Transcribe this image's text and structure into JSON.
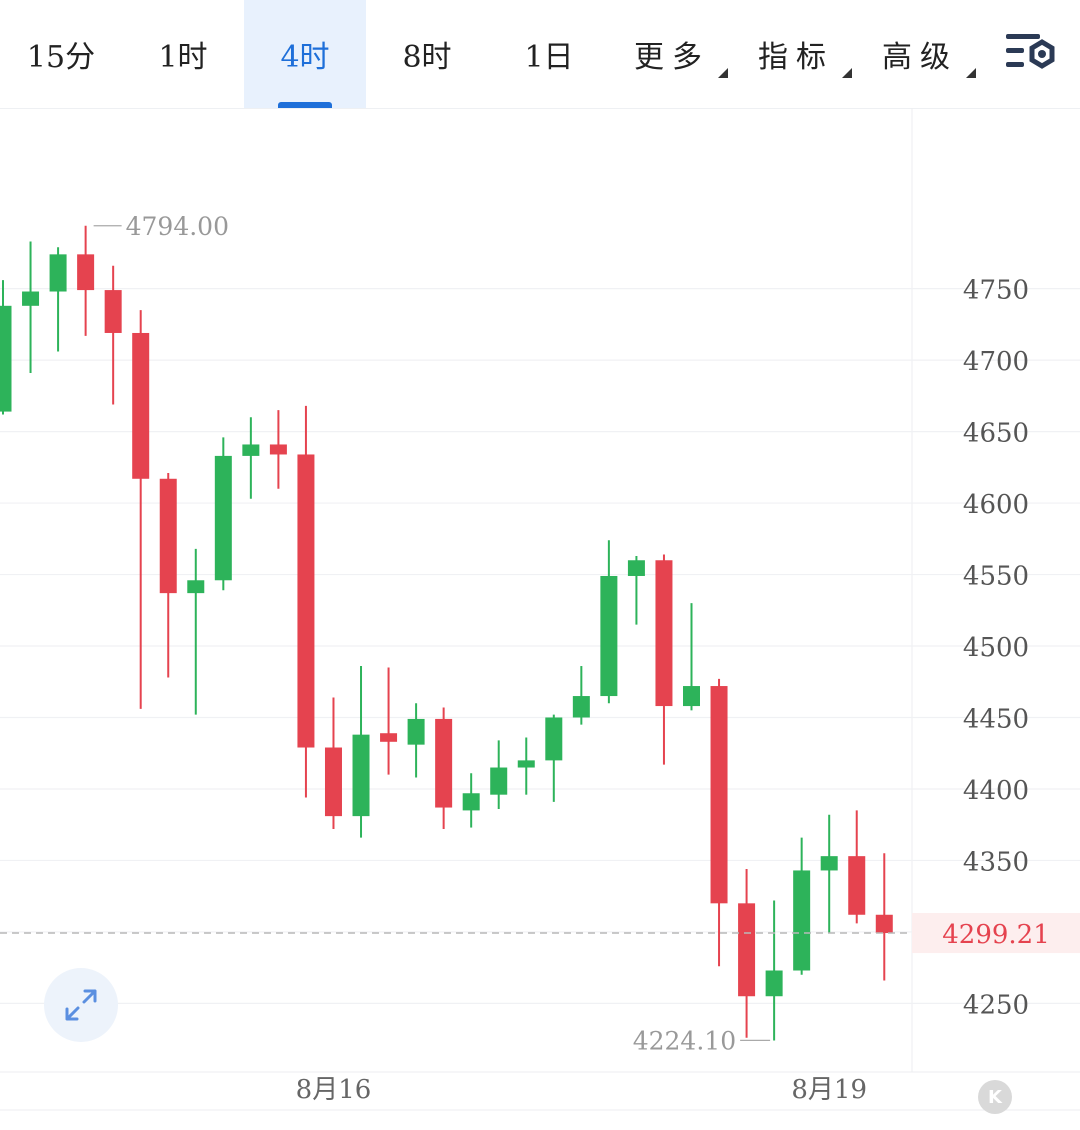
{
  "tabs": [
    {
      "label": "15分",
      "active": false,
      "dropdown": false
    },
    {
      "label": "1时",
      "active": false,
      "dropdown": false
    },
    {
      "label": "4时",
      "active": true,
      "dropdown": false
    },
    {
      "label": "8时",
      "active": false,
      "dropdown": false
    },
    {
      "label": "1日",
      "active": false,
      "dropdown": false
    },
    {
      "label": "更多",
      "active": false,
      "dropdown": true
    },
    {
      "label": "指标",
      "active": false,
      "dropdown": true
    },
    {
      "label": "高级",
      "active": false,
      "dropdown": true
    }
  ],
  "icons": {
    "settings": "chart-settings-icon",
    "expand": "expand-icon",
    "scroll_back": "scroll-to-latest-icon"
  },
  "colors": {
    "up": "#2db35a",
    "down": "#e5434f",
    "accent": "#1e6fd9",
    "price_line": "#e5434f"
  },
  "chart_data": {
    "type": "candlestick",
    "interval": "4时",
    "y_ticks": [
      4250,
      4300,
      4350,
      4400,
      4450,
      4500,
      4550,
      4600,
      4650,
      4700,
      4750
    ],
    "y_tick_labels": [
      "4250",
      "",
      "4350",
      "4400",
      "4450",
      "4500",
      "4550",
      "4600",
      "4650",
      "4700",
      "4750"
    ],
    "ylim": [
      4202,
      4847
    ],
    "x_labels": [
      {
        "index": 12,
        "label": "8月16"
      },
      {
        "index": 30,
        "label": "8月19"
      }
    ],
    "candles": [
      {
        "open": 4664,
        "high": 4756,
        "low": 4662,
        "close": 4738
      },
      {
        "open": 4738,
        "high": 4783,
        "low": 4691,
        "close": 4748
      },
      {
        "open": 4748,
        "high": 4779,
        "low": 4706,
        "close": 4774
      },
      {
        "open": 4774,
        "high": 4794,
        "low": 4717,
        "close": 4749
      },
      {
        "open": 4749,
        "high": 4766,
        "low": 4669,
        "close": 4719
      },
      {
        "open": 4719,
        "high": 4735,
        "low": 4456,
        "close": 4617
      },
      {
        "open": 4617,
        "high": 4621,
        "low": 4478,
        "close": 4537
      },
      {
        "open": 4537,
        "high": 4568,
        "low": 4452,
        "close": 4546
      },
      {
        "open": 4546,
        "high": 4646,
        "low": 4539,
        "close": 4633
      },
      {
        "open": 4633,
        "high": 4660,
        "low": 4603,
        "close": 4641
      },
      {
        "open": 4641,
        "high": 4665,
        "low": 4610,
        "close": 4634
      },
      {
        "open": 4634,
        "high": 4668,
        "low": 4394,
        "close": 4429
      },
      {
        "open": 4429,
        "high": 4464,
        "low": 4372,
        "close": 4381
      },
      {
        "open": 4381,
        "high": 4486,
        "low": 4366,
        "close": 4438
      },
      {
        "open": 4439,
        "high": 4485,
        "low": 4410,
        "close": 4433
      },
      {
        "open": 4431,
        "high": 4460,
        "low": 4408,
        "close": 4449
      },
      {
        "open": 4449,
        "high": 4457,
        "low": 4372,
        "close": 4387
      },
      {
        "open": 4385,
        "high": 4411,
        "low": 4373,
        "close": 4397
      },
      {
        "open": 4396,
        "high": 4434,
        "low": 4386,
        "close": 4415
      },
      {
        "open": 4415,
        "high": 4436,
        "low": 4396,
        "close": 4420
      },
      {
        "open": 4420,
        "high": 4452,
        "low": 4391,
        "close": 4450
      },
      {
        "open": 4450,
        "high": 4486,
        "low": 4445,
        "close": 4465
      },
      {
        "open": 4465,
        "high": 4574,
        "low": 4460,
        "close": 4549
      },
      {
        "open": 4549,
        "high": 4563,
        "low": 4515,
        "close": 4560
      },
      {
        "open": 4560,
        "high": 4564,
        "low": 4417,
        "close": 4458
      },
      {
        "open": 4458,
        "high": 4530,
        "low": 4455,
        "close": 4472
      },
      {
        "open": 4472,
        "high": 4477,
        "low": 4276,
        "close": 4320
      },
      {
        "open": 4320,
        "high": 4344,
        "low": 4226,
        "close": 4255
      },
      {
        "open": 4255,
        "high": 4322,
        "low": 4224,
        "close": 4273
      },
      {
        "open": 4273,
        "high": 4366,
        "low": 4270,
        "close": 4343
      },
      {
        "open": 4343,
        "high": 4382,
        "low": 4299,
        "close": 4353
      },
      {
        "open": 4353,
        "high": 4385,
        "low": 4306,
        "close": 4312
      },
      {
        "open": 4312,
        "high": 4355,
        "low": 4266,
        "close": 4299.21
      }
    ],
    "annotations": [
      {
        "label": "4794.00",
        "price": 4794.0,
        "index": 3,
        "side": "right"
      },
      {
        "label": "4224.10",
        "price": 4224.1,
        "index": 28,
        "side": "left"
      }
    ],
    "last_price": {
      "value": 4299.21,
      "label": "4299.21"
    },
    "grid": true
  }
}
